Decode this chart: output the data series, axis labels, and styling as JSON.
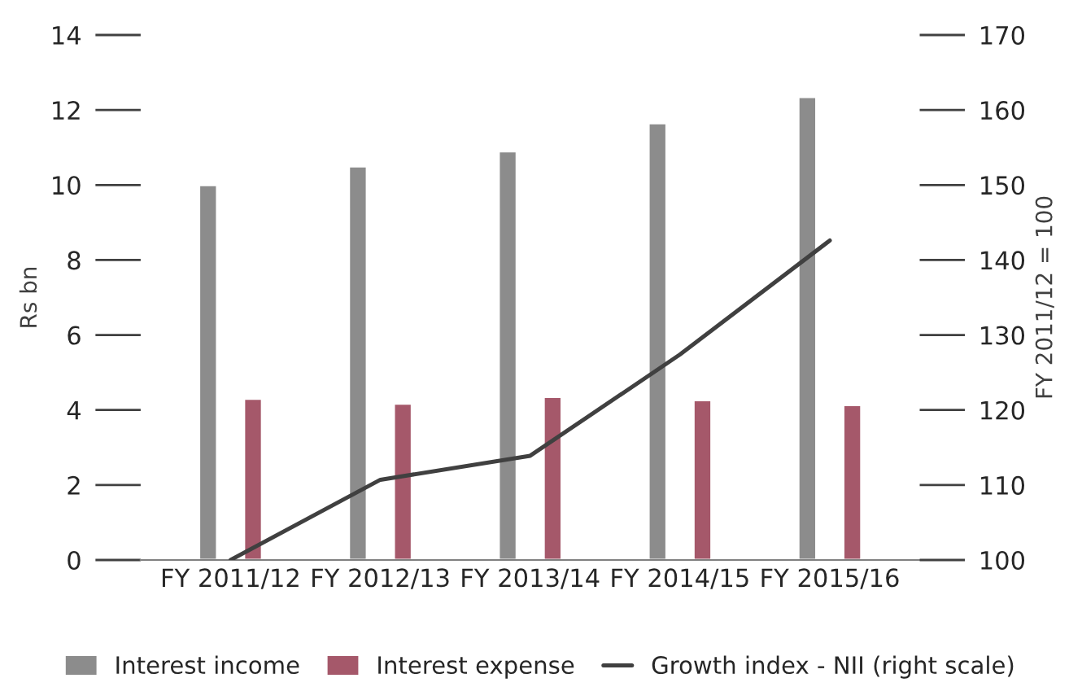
{
  "chart_data": {
    "type": "bar",
    "categories": [
      "FY 2011/12",
      "FY 2012/13",
      "FY 2013/14",
      "FY 2014/15",
      "FY 2015/16"
    ],
    "ylabel": "Rs bn",
    "y2label": "FY 2011/12 = 100",
    "ylim": [
      0,
      14
    ],
    "yticks": [
      0,
      2,
      4,
      6,
      8,
      10,
      12,
      14
    ],
    "y2lim": [
      100,
      170
    ],
    "y2ticks": [
      100,
      110,
      120,
      130,
      140,
      150,
      160,
      170
    ],
    "grid": false,
    "legend": "bottom",
    "series": [
      {
        "name": "Interest income",
        "color": "#8c8c8c",
        "values": [
          10.0,
          10.5,
          10.9,
          11.65,
          12.35
        ]
      },
      {
        "name": "Interest expense",
        "color": "#a5586a",
        "values": [
          4.3,
          4.17,
          4.35,
          4.26,
          4.13
        ]
      },
      {
        "name": "Growth index - NII (right scale)",
        "type": "line",
        "axis": "y2",
        "color": "#404040",
        "values": [
          100,
          110.7,
          113.9,
          127.4,
          142.6
        ]
      }
    ]
  }
}
